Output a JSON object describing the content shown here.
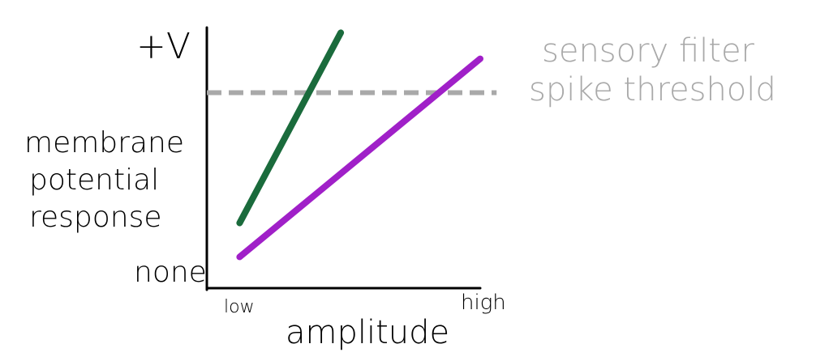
{
  "chart_data": {
    "type": "line",
    "title": "",
    "xlabel": "amplitude",
    "ylabel": "membrane potential response",
    "ylabel_lines": [
      "membrane",
      "potential",
      "response"
    ],
    "x_tick_labels": [
      "low",
      "high"
    ],
    "y_tick_labels": [
      "none",
      "+V"
    ],
    "xlim": [
      0,
      1
    ],
    "ylim": [
      0,
      1
    ],
    "grid": false,
    "series": [
      {
        "name": "",
        "color": "#1a6b3c",
        "x": [
          0.12,
          0.49
        ],
        "y": [
          0.25,
          0.98
        ]
      },
      {
        "name": "",
        "color": "#a020c8",
        "x": [
          0.12,
          1.0
        ],
        "y": [
          0.12,
          0.88
        ]
      }
    ],
    "threshold": {
      "label_lines": [
        "sensory filter",
        "spike threshold"
      ],
      "y": 0.75,
      "x_end": 1.06,
      "color": "#a9a9a9",
      "style": "dashed"
    }
  }
}
